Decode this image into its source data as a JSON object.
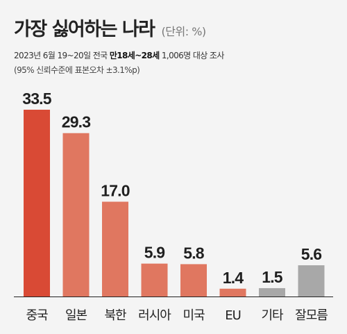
{
  "header": {
    "title": "가장 싫어하는 나라",
    "unit": "(단위: %)",
    "survey_pre": "2023년 6월 19~20일 전국 ",
    "survey_bold": "만18세~28세",
    "survey_post": " 1,006명 대상 조사",
    "note": "(95% 신뢰수준에 표본오차 ±3.1%p)"
  },
  "colors": {
    "primary": "#d94a35",
    "secondary": "#e07760",
    "other": "#a8a8a8",
    "baseline": "#222222"
  },
  "chart_data": {
    "type": "bar",
    "title": "가장 싫어하는 나라",
    "categories": [
      "중국",
      "일본",
      "북한",
      "러시아",
      "미국",
      "EU",
      "기타",
      "잘모름"
    ],
    "values": [
      33.5,
      29.3,
      17.0,
      5.9,
      5.8,
      1.4,
      1.5,
      5.6
    ],
    "value_labels": [
      "33.5",
      "29.3",
      "17.0",
      "5.9",
      "5.8",
      "1.4",
      "1.5",
      "5.6"
    ],
    "bar_colors": [
      "primary",
      "secondary",
      "secondary",
      "secondary",
      "secondary",
      "secondary",
      "other",
      "other"
    ],
    "ylim": [
      0,
      33.5
    ],
    "grid": false,
    "legend": "none"
  }
}
